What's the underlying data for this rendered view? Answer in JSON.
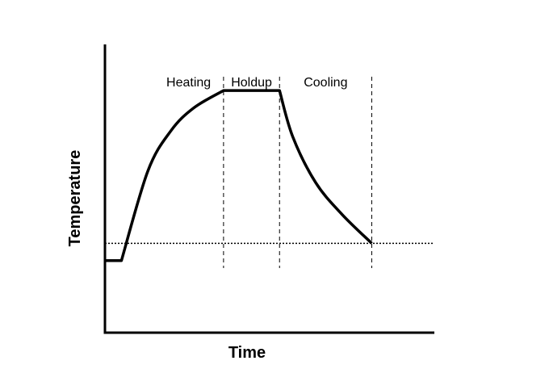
{
  "chart_data": {
    "type": "line",
    "title": "",
    "xlabel": "Time",
    "ylabel": "Temperature",
    "xlim": [
      0,
      10
    ],
    "ylim": [
      0,
      10
    ],
    "grid": false,
    "x_ticks_shown": false,
    "y_ticks_shown": false,
    "phases": [
      {
        "label": "Heating",
        "x_start": 0.5,
        "x_end": 3.6
      },
      {
        "label": "Holdup",
        "x_start": 3.6,
        "x_end": 5.3
      },
      {
        "label": "Cooling",
        "x_start": 5.3,
        "x_end": 8.1
      }
    ],
    "phase_boundaries_x": [
      3.6,
      5.3,
      8.1
    ],
    "reference_level_y": 3.1,
    "series": [
      {
        "x": [
          0.0,
          0.5,
          1.3,
          2.0,
          2.7,
          3.6,
          5.3,
          5.7,
          6.4,
          7.2,
          8.1
        ],
        "y": [
          2.5,
          2.5,
          5.6,
          7.0,
          7.8,
          8.4,
          8.4,
          6.8,
          5.2,
          4.1,
          3.1
        ]
      }
    ],
    "line_color": "#000000"
  }
}
